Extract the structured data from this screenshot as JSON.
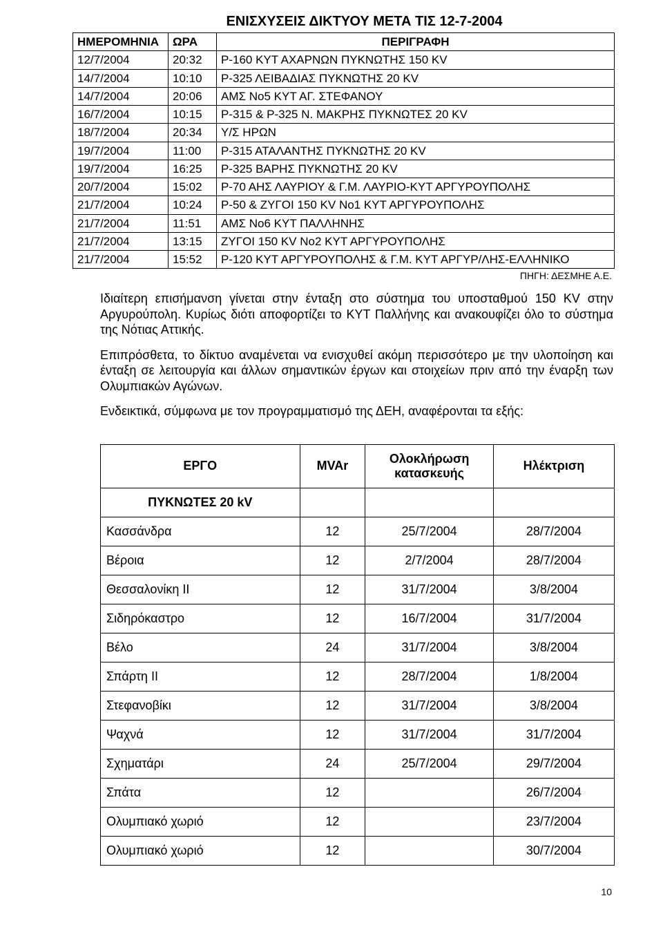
{
  "title": "ΕΝΙΣΧΥΣΕΙΣ ΔΙΚΤΥΟΥ ΜΕΤΑ ΤΙΣ 12-7-2004",
  "table1": {
    "headers": [
      "ΗΜΕΡΟΜΗΝΙΑ",
      "ΩΡΑ",
      "ΠΕΡΙΓΡΑΦΗ"
    ],
    "rows": [
      [
        "12/7/2004",
        "20:32",
        "Ρ-160 ΚΥΤ ΑΧΑΡΝΩΝ ΠΥΚΝΩΤΗΣ 150 KV"
      ],
      [
        "14/7/2004",
        "10:10",
        "Ρ-325 ΛΕΙΒΑΔΙΑΣ ΠΥΚΝΩΤΗΣ 20 KV"
      ],
      [
        "14/7/2004",
        "20:06",
        "ΑΜΣ Νο5 ΚΥΤ ΑΓ. ΣΤΕΦΑΝΟΥ"
      ],
      [
        "16/7/2004",
        "10:15",
        "Ρ-315 & Ρ-325 Ν. ΜΑΚΡΗΣ ΠΥΚΝΩΤΕΣ 20 KV"
      ],
      [
        "18/7/2004",
        "20:34",
        "Υ/Σ ΗΡΩΝ"
      ],
      [
        "19/7/2004",
        "11:00",
        "Ρ-315 ΑΤΑΛΑΝΤΗΣ ΠΥΚΝΩΤΗΣ 20 KV"
      ],
      [
        "19/7/2004",
        "16:25",
        "Ρ-325 ΒΑΡΗΣ ΠΥΚΝΩΤΗΣ 20 KV"
      ],
      [
        "20/7/2004",
        "15:02",
        "Ρ-70 ΑΗΣ ΛΑΥΡΙΟΥ & Γ.Μ. ΛΑΥΡΙΟ-ΚΥΤ ΑΡΓΥΡΟΥΠΟΛΗΣ"
      ],
      [
        "21/7/2004",
        "10:24",
        "Ρ-50 & ΖΥΓΟΙ 150 KV Νο1 ΚΥΤ ΑΡΓΥΡΟΥΠΟΛΗΣ"
      ],
      [
        "21/7/2004",
        "11:51",
        "ΑΜΣ Νο6 ΚΥΤ ΠΑΛΛΗΝΗΣ"
      ],
      [
        "21/7/2004",
        "13:15",
        "ΖΥΓΟΙ 150 KV Νο2 ΚΥΤ ΑΡΓΥΡΟΥΠΟΛΗΣ"
      ],
      [
        "21/7/2004",
        "15:52",
        "Ρ-120 ΚΥΤ ΑΡΓΥΡΟΥΠΟΛΗΣ & Γ.Μ. ΚΥΤ ΑΡΓΥΡ/ΛΗΣ-ΕΛΛΗΝΙΚΟ"
      ]
    ]
  },
  "source": "ΠΗΓΗ: ΔΕΣΜΗΕ Α.Ε.",
  "paragraphs": [
    "Ιδιαίτερη επισήμανση γίνεται στην ένταξη στο σύστημα του υποσταθμού 150 KV στην Αργυρούπολη. Κυρίως διότι αποφορτίζει το ΚΥΤ Παλλήνης και ανακουφίζει όλο το σύστημα της Νότιας Αττικής.",
    "Επιπρόσθετα, το δίκτυο αναμένεται να ενισχυθεί ακόμη περισσότερο με την υλοποίηση και ένταξη σε λειτουργία και άλλων σημαντικών έργων και στοιχείων πριν από την έναρξη των Ολυμπιακών Αγώνων.",
    "Ενδεικτικά, σύμφωνα με τον προγραμματισμό της ΔΕΗ, αναφέρονται τα εξής:"
  ],
  "table2": {
    "headers": [
      "ΕΡΓΟ",
      "MVAr",
      "Ολοκλήρωση κατασκευής",
      "Ηλέκτριση"
    ],
    "section": "ΠΥΚΝΩΤΕΣ 20 kV",
    "rows": [
      [
        "Κασσάνδρα",
        "12",
        "25/7/2004",
        "28/7/2004"
      ],
      [
        "Βέροια",
        "12",
        "2/7/2004",
        "28/7/2004"
      ],
      [
        "Θεσσαλονίκη ΙΙ",
        "12",
        "31/7/2004",
        "3/8/2004"
      ],
      [
        "Σιδηρόκαστρο",
        "12",
        "16/7/2004",
        "31/7/2004"
      ],
      [
        "Βέλο",
        "24",
        "31/7/2004",
        "3/8/2004"
      ],
      [
        "Σπάρτη ΙΙ",
        "12",
        "28/7/2004",
        "1/8/2004"
      ],
      [
        "Στεφανοβίκι",
        "12",
        "31/7/2004",
        "3/8/2004"
      ],
      [
        "Ψαχνά",
        "12",
        "31/7/2004",
        "31/7/2004"
      ],
      [
        "Σχηματάρι",
        "24",
        "25/7/2004",
        "29/7/2004"
      ],
      [
        "Σπάτα",
        "12",
        "",
        "26/7/2004"
      ],
      [
        "Ολυμπιακό χωριό",
        "12",
        "",
        "23/7/2004"
      ],
      [
        "Ολυμπιακό χωριό",
        "12",
        "",
        "30/7/2004"
      ]
    ]
  },
  "pageNumber": "10"
}
